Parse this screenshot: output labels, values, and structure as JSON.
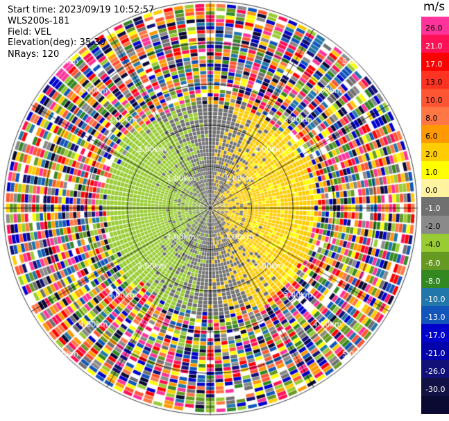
{
  "header": {
    "start_time": "Start time: 2023/09/19 10:52:57",
    "instrument": "WLS200s-181",
    "field": "Field: VEL",
    "elevation": "Elevation(deg): 35.30",
    "nrays": "NRays: 120"
  },
  "chart_data": {
    "type": "heatmap",
    "projection": "polar-ppi",
    "field": "VEL",
    "units": "m/s",
    "elevation_deg": 35.3,
    "n_rays": 120,
    "range_max_km": 5.0,
    "range_rings_km": [
      1.0,
      2.0,
      3.0,
      4.0,
      5.0
    ],
    "ring_labels": [
      "1.00km",
      "2.00km",
      "3.00km",
      "4.00km",
      "5.00km"
    ],
    "azimuth_lines_deg": [
      0,
      30,
      60,
      90,
      120,
      150,
      180,
      210,
      240,
      270,
      300,
      330
    ],
    "velocity_pattern": {
      "toward_range_km": [
        0.0,
        2.6
      ],
      "positive_side_azimuth_deg": 90,
      "positive_peak_ms": 2.0,
      "negative_peak_ms": -2.0,
      "noise_beyond_km": 2.6
    },
    "colorbar": {
      "unit": "m/s",
      "tick_labels": [
        "26.0",
        "21.0",
        "17.0",
        "13.0",
        "10.0",
        "8.0",
        "6.0",
        "2.0",
        "1.0",
        "0.0",
        "-1.0",
        "-2.0",
        "-4.0",
        "-6.0",
        "-8.0",
        "-10.0",
        "-13.0",
        "-17.0",
        "-21.0",
        "-26.0",
        "-30.0"
      ],
      "colors": [
        "#ff3399",
        "#ff1155",
        "#ff0000",
        "#ff3322",
        "#ff5533",
        "#ff7744",
        "#ff9900",
        "#ffcc00",
        "#ffff00",
        "#fff3a0",
        "#707070",
        "#8a8a8a",
        "#99cc33",
        "#669922",
        "#338822",
        "#2277aa",
        "#1155bb",
        "#0000cc",
        "#0000aa",
        "#111177",
        "#111144",
        "#0a0a33"
      ]
    }
  }
}
